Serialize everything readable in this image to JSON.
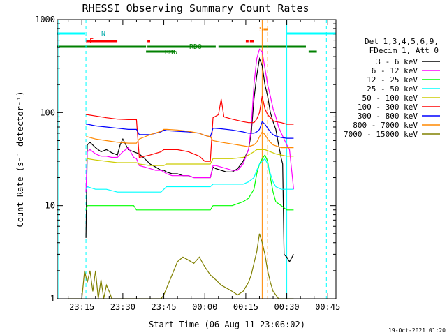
{
  "chart_data": {
    "type": "line",
    "title": "RHESSI Observing Summary Count Rates",
    "xlabel": "Start Time (06-Aug-11 23:06:02)",
    "ylabel": "Count Rate (s⁻¹ detector⁻¹)",
    "y_scale": "log",
    "ylim": [
      1,
      1000
    ],
    "xlim_minutes": [
      -54,
      48
    ],
    "x_ticks": [
      {
        "label": "23:15",
        "m": -45
      },
      {
        "label": "23:30",
        "m": -30
      },
      {
        "label": "23:45",
        "m": -15
      },
      {
        "label": "00:00",
        "m": 0
      },
      {
        "label": "00:15",
        "m": 15
      },
      {
        "label": "00:30",
        "m": 30
      },
      {
        "label": "00:45",
        "m": 45
      }
    ],
    "y_ticks": [
      {
        "label": "1000",
        "v": 1000
      },
      {
        "label": "100",
        "v": 100
      },
      {
        "label": "10",
        "v": 10
      },
      {
        "label": "1",
        "v": 1
      }
    ],
    "legend_header": [
      "Det 1,3,4,5,6,9,",
      "FDecim 1, Att 0"
    ],
    "series": [
      {
        "name": "3 - 6 keV",
        "color": "#000000",
        "x": [
          -43.5,
          -43,
          -42,
          -40,
          -38,
          -36,
          -34,
          -33,
          -32,
          -31,
          -30,
          -28,
          -26,
          -25,
          -24,
          -22,
          -20,
          -18,
          -16,
          -15,
          -14,
          -12,
          -10,
          -8,
          -6,
          -4,
          -2,
          0,
          2,
          3,
          4,
          6,
          8,
          10,
          12,
          14,
          16,
          17,
          18,
          19,
          20,
          21,
          22,
          23,
          24,
          25,
          26,
          27,
          28,
          28.5,
          29,
          30,
          31,
          32.5
        ],
        "y": [
          4.5,
          45,
          48,
          42,
          38,
          40,
          37,
          36,
          35,
          45,
          52,
          40,
          38,
          37,
          36,
          32,
          28,
          26,
          24,
          24,
          23,
          22,
          22,
          21,
          21,
          20,
          20,
          20,
          20,
          26,
          25,
          24,
          23,
          23,
          25,
          30,
          40,
          60,
          140,
          250,
          380,
          320,
          200,
          150,
          100,
          80,
          66,
          45,
          32,
          28,
          3,
          2.8,
          2.5,
          3
        ]
      },
      {
        "name": "6 - 12 keV",
        "color": "#ff00ff",
        "x": [
          -43.5,
          -43,
          -42,
          -40,
          -38,
          -36,
          -34,
          -32,
          -30,
          -28,
          -26,
          -25,
          -24,
          -22,
          -20,
          -18,
          -16,
          -15,
          -14,
          -12,
          -10,
          -8,
          -6,
          -4,
          -2,
          0,
          2,
          3,
          4,
          6,
          8,
          10,
          12,
          14,
          16,
          17,
          18,
          19,
          20,
          21,
          22,
          23,
          24,
          25,
          26,
          27,
          28,
          30,
          31,
          32.5
        ],
        "y": [
          14,
          38,
          40,
          36,
          34,
          34,
          33,
          33,
          38,
          42,
          33,
          32,
          27,
          26,
          25,
          24,
          24,
          23,
          22,
          21,
          21,
          21,
          21,
          20,
          20,
          20,
          20,
          27,
          27,
          26,
          25,
          24,
          24,
          28,
          40,
          70,
          200,
          380,
          480,
          450,
          300,
          200,
          150,
          110,
          90,
          70,
          60,
          45,
          40,
          15
        ]
      },
      {
        "name": "12 - 25 keV",
        "color": "#00ff00",
        "x": [
          -43.5,
          -43,
          -40,
          -36,
          -32,
          -28,
          -26,
          -25,
          -24,
          -20,
          -16,
          -15,
          -14,
          -10,
          -6,
          -2,
          0,
          2,
          3,
          6,
          10,
          14,
          16,
          18,
          19,
          20,
          21,
          22,
          23,
          24,
          25,
          26,
          28,
          30,
          32.5
        ],
        "y": [
          9,
          10,
          10,
          10,
          10,
          10,
          10,
          9,
          9,
          9,
          9,
          9,
          9,
          9,
          9,
          9,
          9,
          9,
          10,
          10,
          10,
          11,
          12,
          15,
          22,
          28,
          32,
          35,
          30,
          20,
          14,
          11,
          10,
          9,
          9
        ]
      },
      {
        "name": "25 - 50 keV",
        "color": "#00ffff",
        "x": [
          -43.5,
          -43,
          -40,
          -36,
          -32,
          -28,
          -26,
          -25,
          -24,
          -20,
          -16,
          -15,
          -14,
          -10,
          -6,
          -2,
          0,
          2,
          3,
          6,
          10,
          14,
          16,
          18,
          19,
          20,
          21,
          22,
          23,
          24,
          25,
          26,
          28,
          30,
          32.5
        ],
        "y": [
          15,
          16,
          15,
          15,
          14,
          14,
          14,
          14,
          14,
          14,
          14,
          15,
          16,
          16,
          16,
          16,
          16,
          16,
          17,
          17,
          17,
          17,
          18,
          20,
          24,
          28,
          30,
          32,
          28,
          22,
          18,
          16,
          15,
          15,
          15
        ]
      },
      {
        "name": "50 - 100 keV",
        "color": "#cccc00",
        "x": [
          -43.5,
          -43,
          -40,
          -36,
          -32,
          -28,
          -26,
          -25,
          -24,
          -20,
          -16,
          -15,
          -14,
          -10,
          -6,
          -2,
          0,
          2,
          3,
          6,
          10,
          14,
          16,
          18,
          19,
          20,
          21,
          22,
          23,
          24,
          25,
          26,
          28,
          30,
          32.5
        ],
        "y": [
          30,
          32,
          31,
          30,
          29,
          29,
          29,
          29,
          28,
          27,
          27,
          27,
          28,
          28,
          28,
          28,
          28,
          28,
          32,
          32,
          32,
          33,
          35,
          38,
          40,
          40,
          40,
          40,
          39,
          38,
          37,
          36,
          35,
          34,
          34
        ]
      },
      {
        "name": "100 - 300 keV",
        "color": "#ff0000",
        "x": [
          -43.5,
          -43,
          -40,
          -36,
          -32,
          -28,
          -26,
          -25,
          -24,
          -20,
          -16,
          -15,
          -14,
          -10,
          -6,
          -2,
          0,
          2,
          3,
          5,
          6,
          7,
          10,
          14,
          16,
          18,
          19,
          20,
          21,
          22,
          23,
          24,
          25,
          26,
          28,
          30,
          32.5
        ],
        "y": [
          95,
          95,
          92,
          88,
          85,
          84,
          84,
          84,
          33,
          35,
          38,
          40,
          40,
          40,
          38,
          34,
          30,
          30,
          88,
          95,
          140,
          90,
          85,
          80,
          78,
          78,
          85,
          100,
          150,
          110,
          95,
          88,
          82,
          80,
          78,
          75,
          75
        ]
      },
      {
        "name": "300 - 800 keV",
        "color": "#0000ff",
        "x": [
          -43.5,
          -43,
          -40,
          -36,
          -32,
          -28,
          -26,
          -25,
          -24,
          -20,
          -16,
          -15,
          -14,
          -10,
          -6,
          -2,
          0,
          2,
          3,
          6,
          10,
          14,
          16,
          18,
          19,
          20,
          21,
          22,
          23,
          24,
          25,
          26,
          28,
          30,
          32.5
        ],
        "y": [
          75,
          75,
          72,
          70,
          68,
          66,
          66,
          66,
          58,
          58,
          62,
          65,
          64,
          63,
          62,
          60,
          57,
          55,
          68,
          67,
          65,
          62,
          60,
          60,
          62,
          66,
          80,
          75,
          68,
          62,
          58,
          56,
          54,
          53,
          53
        ]
      },
      {
        "name": "800 - 7000 keV",
        "color": "#ff8800",
        "x": [
          -43.5,
          -43,
          -40,
          -36,
          -32,
          -28,
          -26,
          -25,
          -24,
          -20,
          -16,
          -15,
          -14,
          -10,
          -6,
          -2,
          0,
          2,
          3,
          6,
          10,
          14,
          16,
          18,
          19,
          20,
          21,
          22,
          23,
          24,
          25,
          26,
          28,
          30,
          32.5
        ],
        "y": [
          55,
          55,
          52,
          50,
          48,
          47,
          47,
          47,
          52,
          58,
          63,
          66,
          66,
          65,
          63,
          60,
          57,
          55,
          50,
          48,
          46,
          44,
          43,
          45,
          48,
          55,
          62,
          58,
          52,
          48,
          45,
          44,
          42,
          42,
          42
        ]
      },
      {
        "name": "7000 - 15000 keV",
        "color": "#808000",
        "x": [
          -50,
          -45,
          -44,
          -43,
          -42,
          -41,
          -40,
          -39,
          -38,
          -37,
          -36,
          -35,
          -34,
          -32,
          -28,
          -24,
          -20,
          -16,
          -15,
          -14,
          -12,
          -10,
          -8,
          -6,
          -4,
          -2,
          0,
          2,
          4,
          6,
          8,
          10,
          12,
          14,
          16,
          17,
          18,
          19,
          20,
          21,
          22,
          23,
          24,
          25,
          26,
          27,
          28,
          30,
          32.5
        ],
        "y": [
          1,
          1,
          2,
          1.5,
          2,
          1.2,
          2,
          1,
          1.6,
          1,
          1.4,
          1.2,
          1,
          1,
          1,
          1,
          1,
          1,
          1.1,
          1.3,
          1.8,
          2.5,
          2.8,
          2.6,
          2.4,
          2.8,
          2.2,
          1.8,
          1.6,
          1.4,
          1.3,
          1.2,
          1.1,
          1.2,
          1.5,
          1.8,
          2.4,
          3.2,
          5,
          4,
          3,
          2,
          1.5,
          1.2,
          1.1,
          1,
          1,
          1,
          1
        ]
      }
    ],
    "annotations": {
      "N": "N",
      "F": "F",
      "S": "S",
      "RD0": "RD0",
      "RD6": "RD6"
    },
    "flags": {
      "night": {
        "color": "#00ffff",
        "x": [
          [
            -54,
            -44
          ],
          [
            30,
            48
          ]
        ]
      },
      "flare": {
        "color": "#ff0000",
        "x": [
          [
            -43.5,
            -32
          ],
          [
            -21,
            -20
          ],
          [
            15,
            16
          ],
          [
            16.5,
            18
          ]
        ]
      },
      "saa": {
        "color": "#ff8800",
        "x": [
          [
            21.5,
            23
          ]
        ]
      },
      "rd0": {
        "color": "#008000",
        "x": [
          [
            -54,
            -21.5
          ],
          [
            -21,
            4
          ],
          [
            5,
            37
          ]
        ]
      },
      "rd6": {
        "color": "#008000",
        "x": [
          [
            -21.5,
            -11
          ],
          [
            38,
            41
          ]
        ]
      }
    },
    "vertical_lines": {
      "night": {
        "color": "#00ffff",
        "solid": [
          -53.5,
          30
        ],
        "dashed": [
          -43.5,
          44.5
        ]
      },
      "saa": {
        "color": "#ff8800",
        "solid": [
          21
        ],
        "dashed": [
          23
        ]
      }
    },
    "grid": false,
    "legend_position": "right"
  },
  "timestamp": "19-Oct-2021 01:20"
}
